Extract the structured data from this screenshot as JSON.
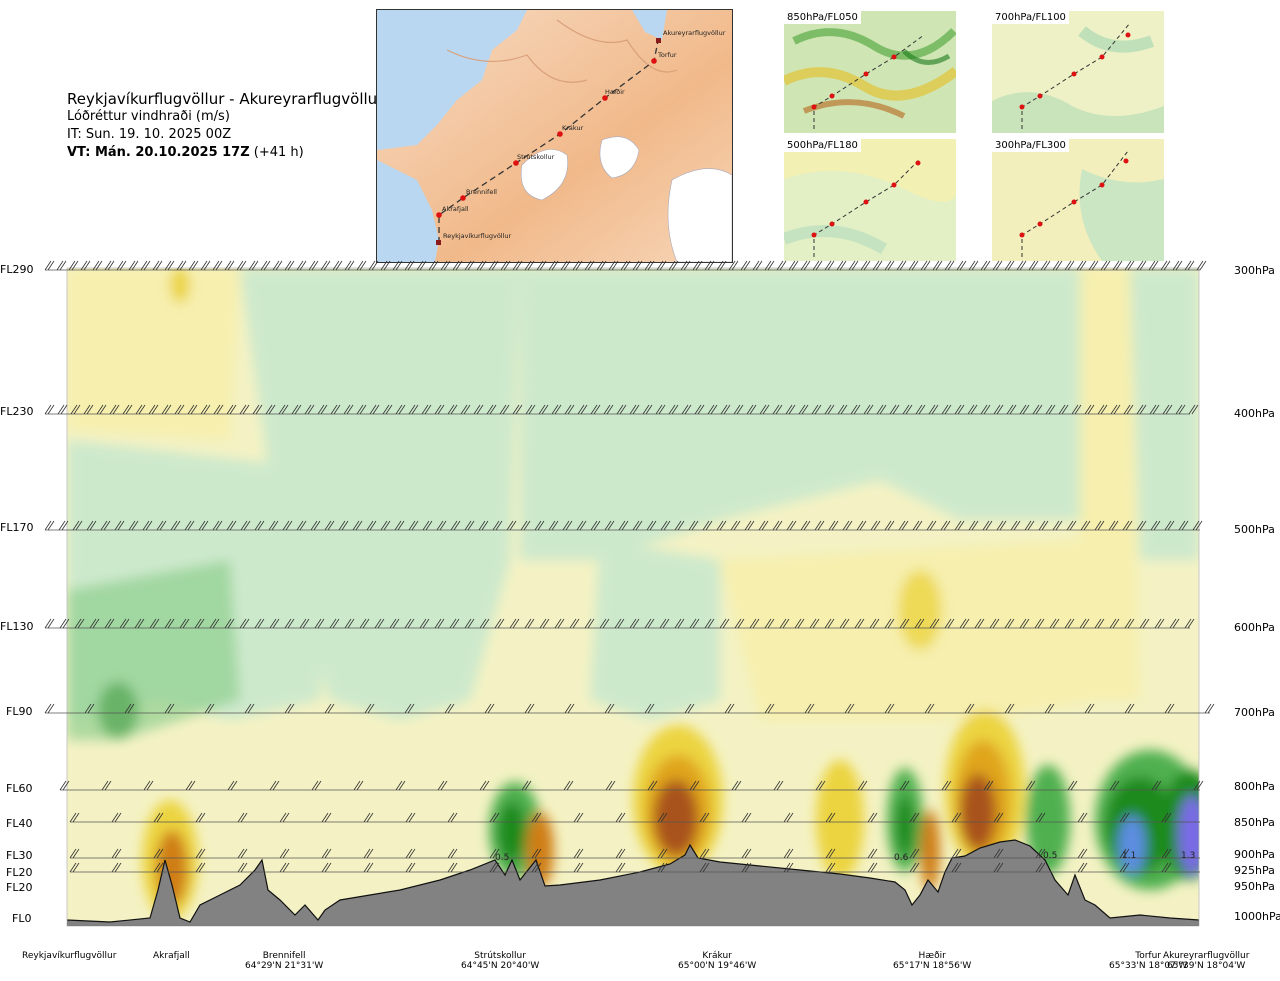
{
  "header": {
    "route": "Reykjavíkurflugvöllur - Akureyrarflugvöllur",
    "product": "Lóðréttur vindhraði (m/s)",
    "initial_time": "IT: Sun. 19. 10. 2025 00Z",
    "valid_time": "VT: Mán. 20.10.2025 17Z",
    "lead_time": "(+41 h)"
  },
  "route_map": {
    "waypoints": [
      "Akureyrarflugvöllur",
      "Torfur",
      "Hæðir",
      "Krákur",
      "Strútskollur",
      "Brennifell",
      "Akrafjall",
      "Reykjavíkurflugvöllur"
    ]
  },
  "mini_maps": [
    {
      "label": "850hPa/FL050"
    },
    {
      "label": "700hPa/FL100"
    },
    {
      "label": "500hPa/FL180"
    },
    {
      "label": "300hPa/FL300"
    }
  ],
  "chart_data": {
    "type": "heatmap",
    "title": "Lóðréttur vindhraði (m/s)",
    "quantity": "vertical wind speed (m/s)",
    "y_left_flight_levels": [
      "FL290",
      "FL230",
      "FL170",
      "FL130",
      "FL90",
      "FL60",
      "FL40",
      "FL30",
      "FL20",
      "FL20",
      "FL0"
    ],
    "y_right_pressure_levels": [
      "300hPa",
      "400hPa",
      "500hPa",
      "600hPa",
      "700hPa",
      "800hPa",
      "850hPa",
      "900hPa",
      "925hPa",
      "950hPa",
      "1000hPa"
    ],
    "x_locations": [
      {
        "name": "Reykjavíkurflugvöllur",
        "coord": ""
      },
      {
        "name": "Akrafjall",
        "coord": ""
      },
      {
        "name": "Brennifell",
        "coord": "64°29'N 21°31'W"
      },
      {
        "name": "Strútskollur",
        "coord": "64°45'N 20°40'W"
      },
      {
        "name": "Krákur",
        "coord": "65°00'N 19°46'W"
      },
      {
        "name": "Hæðir",
        "coord": "65°17'N 18°56'W"
      },
      {
        "name": "Torfur",
        "coord": "65°33'N 18°07'W"
      },
      {
        "name": "Akureyrarflugvöllur",
        "coord": "65°39'N 18°04'W"
      }
    ],
    "annotations": [
      "0.5",
      "0.6",
      "0.5",
      "1.1",
      "1.3"
    ],
    "colors": {
      "strong_down": "#7a6ae6",
      "down_blue": "#5b8de0",
      "down_darkgreen": "#1b8a1b",
      "down_green": "#4fb04f",
      "down_mid": "#8fcf8f",
      "down_light": "#cde9cc",
      "near_zero": "#fdfde6",
      "up_light": "#f6efae",
      "up_yellow": "#ecd440",
      "up_gold": "#e0a51a",
      "up_orange": "#cf7e16",
      "up_brown": "#a9531a",
      "terrain": "#828282"
    }
  }
}
